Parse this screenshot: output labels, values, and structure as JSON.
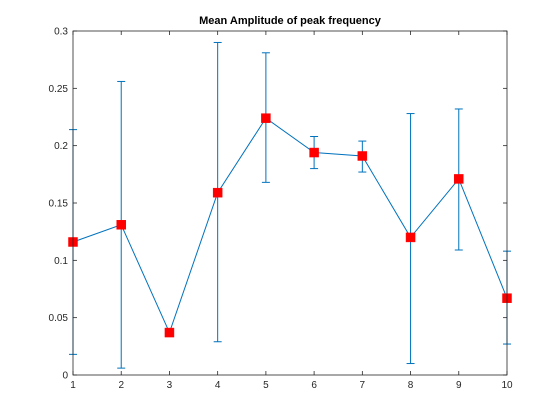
{
  "chart_data": {
    "type": "line",
    "title": "Mean Amplitude of peak frequency",
    "xlabel": "",
    "ylabel": "",
    "xlim": [
      1,
      10
    ],
    "ylim": [
      0,
      0.3
    ],
    "xticks": [
      "1",
      "2",
      "3",
      "4",
      "5",
      "6",
      "7",
      "8",
      "9",
      "10"
    ],
    "yticks": [
      "0",
      "0.05",
      "0.1",
      "0.15",
      "0.2",
      "0.25",
      "0.3"
    ],
    "grid": false,
    "legend": "none",
    "line_color": "#0072BD",
    "marker_color": "#FF0000",
    "series": [
      {
        "x": [
          1,
          2,
          3,
          4,
          5,
          6,
          7,
          8,
          9,
          10
        ],
        "values": [
          0.116,
          0.131,
          0.037,
          0.159,
          0.224,
          0.194,
          0.191,
          0.12,
          0.171,
          0.067
        ],
        "err_low": [
          0.018,
          0.006,
          0.037,
          0.029,
          0.168,
          0.18,
          0.177,
          0.01,
          0.109,
          0.027
        ],
        "err_high": [
          0.214,
          0.256,
          0.037,
          0.29,
          0.281,
          0.208,
          0.204,
          0.228,
          0.232,
          0.108
        ]
      }
    ]
  }
}
